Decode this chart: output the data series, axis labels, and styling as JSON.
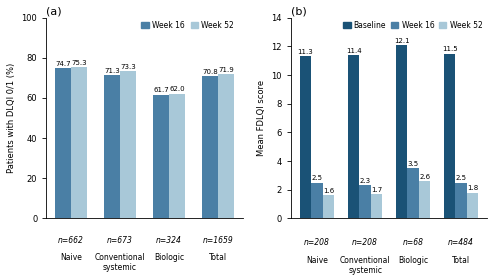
{
  "panel_a": {
    "title": "(a)",
    "ylabel": "Patients with DLQI 0/1 (%)",
    "categories": [
      "Naive",
      "Conventional\nsystemic",
      "Biologic",
      "Total"
    ],
    "n_labels": [
      "n=662",
      "n=673",
      "n=324",
      "n=1659"
    ],
    "week16": [
      74.7,
      71.3,
      61.7,
      70.8
    ],
    "week52": [
      75.3,
      73.3,
      62.0,
      71.9
    ],
    "color_week16": "#4a7fa5",
    "color_week52": "#a8c8d8",
    "ylim": [
      0,
      100
    ],
    "yticks": [
      0,
      20,
      40,
      60,
      80,
      100
    ],
    "legend_labels": [
      "Week 16",
      "Week 52"
    ]
  },
  "panel_b": {
    "title": "(b)",
    "ylabel": "Mean FDLQI score",
    "categories": [
      "Naive",
      "Conventional\nsystemic",
      "Biologic",
      "Total"
    ],
    "n_labels": [
      "n=208",
      "n=208",
      "n=68",
      "n=484"
    ],
    "baseline": [
      11.3,
      11.4,
      12.1,
      11.5
    ],
    "week16": [
      2.5,
      2.3,
      3.5,
      2.5
    ],
    "week52": [
      1.6,
      1.7,
      2.6,
      1.8
    ],
    "color_baseline": "#1a5276",
    "color_week16": "#4a7fa5",
    "color_week52": "#a8c8d8",
    "ylim": [
      0,
      14
    ],
    "yticks": [
      0,
      2,
      4,
      6,
      8,
      10,
      12,
      14
    ],
    "legend_labels": [
      "Baseline",
      "Week 16",
      "Week 52"
    ]
  }
}
